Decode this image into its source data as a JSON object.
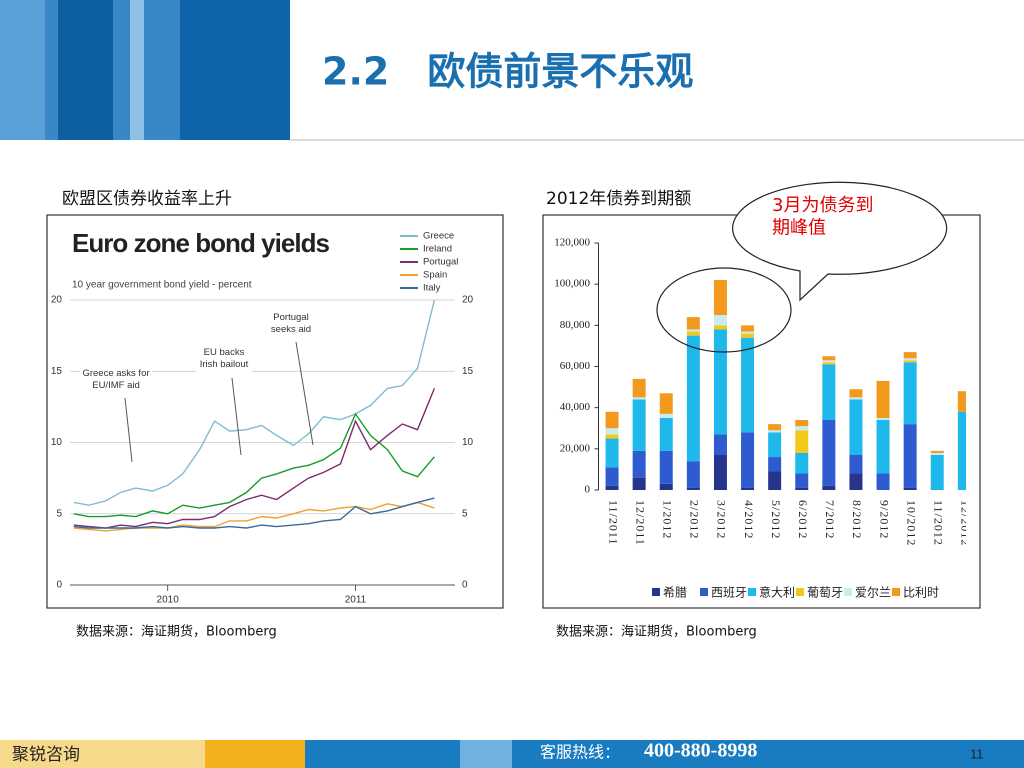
{
  "header": {
    "title": "2.2　欧债前景不乐观"
  },
  "sections": [
    {
      "heading": "欧盟区债券收益率上升",
      "source": "数据来源：海证期货，Bloomberg"
    },
    {
      "heading": "2012年债券到期额",
      "source": "数据来源：海证期货，Bloomberg"
    }
  ],
  "callout": "3月为债务到\n期峰值",
  "chart_data": [
    {
      "type": "line",
      "title": "Euro zone bond yields",
      "subtitle": "10 year government bond yield - percent",
      "x": [
        2009.5,
        2009.58,
        2009.67,
        2009.75,
        2009.83,
        2009.92,
        2010.0,
        2010.08,
        2010.17,
        2010.25,
        2010.33,
        2010.42,
        2010.5,
        2010.58,
        2010.67,
        2010.75,
        2010.83,
        2010.92,
        2011.0,
        2011.08,
        2011.17,
        2011.25,
        2011.33,
        2011.42
      ],
      "series": [
        {
          "name": "Greece",
          "color": "#7fbcd2",
          "values": [
            5.8,
            5.6,
            5.9,
            6.5,
            6.8,
            6.6,
            7.0,
            7.8,
            9.5,
            11.5,
            10.8,
            10.9,
            11.2,
            10.5,
            9.8,
            10.6,
            11.8,
            11.6,
            12.0,
            12.6,
            13.8,
            14.0,
            15.2,
            20.0
          ]
        },
        {
          "name": "Ireland",
          "color": "#1a9a2a",
          "values": [
            5.0,
            4.8,
            4.8,
            4.9,
            4.8,
            5.2,
            5.0,
            5.6,
            5.4,
            5.6,
            5.8,
            6.5,
            7.5,
            7.8,
            8.2,
            8.4,
            8.8,
            9.6,
            12.0,
            10.5,
            9.5,
            8.0,
            7.6,
            9.0
          ]
        },
        {
          "name": "Portugal",
          "color": "#7b2b6e",
          "values": [
            4.2,
            4.1,
            4.0,
            4.2,
            4.1,
            4.4,
            4.3,
            4.6,
            4.6,
            4.8,
            5.5,
            6.0,
            6.3,
            6.0,
            6.8,
            7.5,
            7.9,
            8.5,
            11.5,
            9.5,
            10.5,
            11.3,
            10.9,
            13.8
          ]
        },
        {
          "name": "Spain",
          "color": "#f0a030",
          "values": [
            4.0,
            3.9,
            3.8,
            3.9,
            4.0,
            4.0,
            4.0,
            4.2,
            4.1,
            4.1,
            4.5,
            4.5,
            4.8,
            4.7,
            5.0,
            5.3,
            5.2,
            5.4,
            5.5,
            5.3,
            5.7,
            5.5,
            5.8,
            5.4
          ]
        },
        {
          "name": "Italy",
          "color": "#3a6a9a",
          "values": [
            4.1,
            4.0,
            4.0,
            4.0,
            4.0,
            4.1,
            4.0,
            4.1,
            4.0,
            4.0,
            4.1,
            4.0,
            4.2,
            4.1,
            4.2,
            4.3,
            4.5,
            4.6,
            5.5,
            5.0,
            5.2,
            5.5,
            5.8,
            6.1
          ]
        }
      ],
      "xlim": [
        2009.48,
        2011.45
      ],
      "xticks": [
        2010,
        2011
      ],
      "ylim": [
        0,
        20
      ],
      "yticks": [
        0,
        5,
        10,
        15,
        20
      ],
      "grid": true,
      "annotations": [
        "Greece asks for\nEU/IMF aid",
        "EU backs\nIrish bailout",
        "Portugal\nseeks aid"
      ]
    },
    {
      "type": "stacked_bar",
      "categories": [
        "11/2011",
        "12/2011",
        "1/2012",
        "2/2012",
        "3/2012",
        "4/2012",
        "5/2012",
        "6/2012",
        "7/2012",
        "8/2012",
        "9/2012",
        "10/2012",
        "11/2012",
        "12/2012"
      ],
      "series": [
        {
          "name": "希腊",
          "color": "#27348b",
          "values": [
            2000,
            6000,
            3000,
            1000,
            17000,
            1000,
            9000,
            1000,
            2000,
            8000,
            0,
            1000,
            0,
            0
          ]
        },
        {
          "name": "西班牙",
          "color": "#2f5bd0",
          "values": [
            9000,
            13000,
            16000,
            13000,
            10000,
            27000,
            7000,
            7000,
            32000,
            9000,
            8000,
            31000,
            0,
            0
          ]
        },
        {
          "name": "意大利",
          "color": "#1fb8ea",
          "values": [
            14000,
            25000,
            16000,
            61000,
            51000,
            46000,
            12000,
            10000,
            27000,
            27000,
            26000,
            30000,
            17000,
            38000
          ]
        },
        {
          "name": "葡萄牙",
          "color": "#f2c81c",
          "values": [
            2000,
            0,
            0,
            2000,
            2000,
            2000,
            0,
            11000,
            1000,
            0,
            0,
            1000,
            0,
            0
          ]
        },
        {
          "name": "爱尔兰",
          "color": "#c8ecf4",
          "values": [
            3000,
            1000,
            2000,
            1000,
            5000,
            1000,
            1000,
            2000,
            1000,
            1000,
            1000,
            1000,
            1000,
            0
          ]
        },
        {
          "name": "比利时",
          "color": "#f39a1e",
          "values": [
            8000,
            9000,
            10000,
            6000,
            17000,
            3000,
            3000,
            3000,
            2000,
            4000,
            18000,
            3000,
            1000,
            10000
          ]
        }
      ],
      "ylim": [
        0,
        120000
      ],
      "yticks": [
        {
          "value": 0,
          "label": "0"
        },
        {
          "value": 20000,
          "label": "20,000"
        },
        {
          "value": 40000,
          "label": "40,000"
        },
        {
          "value": 60000,
          "label": "60,000"
        },
        {
          "value": 80000,
          "label": "80,000"
        },
        {
          "value": 100000,
          "label": "100,000"
        },
        {
          "value": 120000,
          "label": "120,000"
        }
      ]
    }
  ],
  "footer": {
    "company": "聚锐咨询",
    "hotline_label": "客服热线：",
    "hotline": "400-880-8998",
    "page": "11"
  }
}
